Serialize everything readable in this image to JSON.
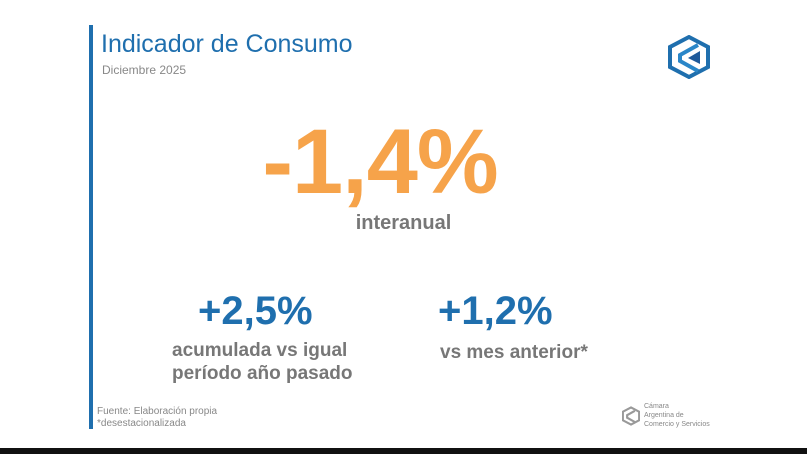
{
  "header": {
    "title": "Indicador de Consumo",
    "subtitle": "Diciembre 2025"
  },
  "main": {
    "value": "-1,4%",
    "label": "interanual"
  },
  "kpis": [
    {
      "value": "+2,5%",
      "label_line1": "acumulada vs igual",
      "label_line2": "período año pasado"
    },
    {
      "value": "+1,2%",
      "label_line1": "vs mes anterior*"
    }
  ],
  "footer": {
    "source": "Fuente: Elaboración propia",
    "note": "*desestacionalizada",
    "org": [
      "Cámara",
      "Argentina de",
      "Comercio y Servicios"
    ]
  },
  "colors": {
    "accent": "#1f6fae",
    "highlight": "#f6a34a"
  }
}
